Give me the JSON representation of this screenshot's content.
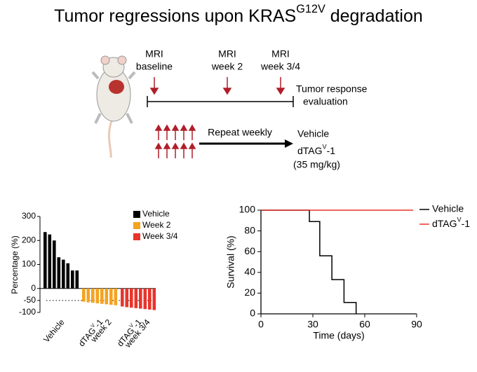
{
  "title": [
    "Tumor regressions upon KRAS",
    "G12V",
    " degradation"
  ],
  "diagram": {
    "mri": [
      [
        "MRI",
        "baseline"
      ],
      [
        "MRI",
        "week 2"
      ],
      [
        "MRI",
        "week 3/4"
      ]
    ],
    "evaluation": [
      "Tumor response",
      "evaluation"
    ],
    "repeat": "Repeat weekly",
    "arms": [
      "Vehicle",
      [
        "dTAG",
        "V",
        "-1"
      ],
      "(35 mg/kg)"
    ]
  },
  "chart_data": [
    {
      "type": "bar",
      "ylabel": "Percentage (%)",
      "ylim": [
        -100,
        300
      ],
      "yticks": [
        300,
        200,
        100,
        0,
        -50,
        -100
      ],
      "hline": -50,
      "group_labels": [
        [
          "Vehicle"
        ],
        [
          [
            "dTAG",
            "V",
            "-1"
          ],
          "week 2"
        ],
        [
          [
            "dTAG",
            "V",
            "-1"
          ],
          "week 3/4"
        ]
      ],
      "series": [
        {
          "name": "Vehicle",
          "color": "#000000",
          "values": [
            235,
            225,
            200,
            130,
            120,
            105,
            75,
            75
          ]
        },
        {
          "name": "Week 2",
          "color": "#f5a31f",
          "values": [
            -55,
            -58,
            -60,
            -62,
            -64,
            -66,
            -68,
            -70
          ]
        },
        {
          "name": "Week 3/4",
          "color": "#e8352b",
          "values": [
            -75,
            -78,
            -80,
            -82,
            -84,
            -86,
            -88,
            -90
          ]
        }
      ]
    },
    {
      "type": "line",
      "step": true,
      "xlabel": "Time (days)",
      "ylabel": "Survival (%)",
      "xlim": [
        0,
        90
      ],
      "xticks": [
        0,
        30,
        60,
        90
      ],
      "ylim": [
        0,
        100
      ],
      "yticks": [
        0,
        20,
        40,
        60,
        80,
        100
      ],
      "series": [
        {
          "name": "Vehicle",
          "color": "#000000",
          "x": [
            0,
            28,
            34,
            41,
            48,
            55
          ],
          "values": [
            100,
            89,
            56,
            33,
            11,
            0
          ]
        },
        {
          "name": [
            "dTAG",
            "V",
            "-1"
          ],
          "color": "#e8352b",
          "x": [
            0,
            88
          ],
          "values": [
            100,
            100
          ]
        }
      ]
    }
  ]
}
